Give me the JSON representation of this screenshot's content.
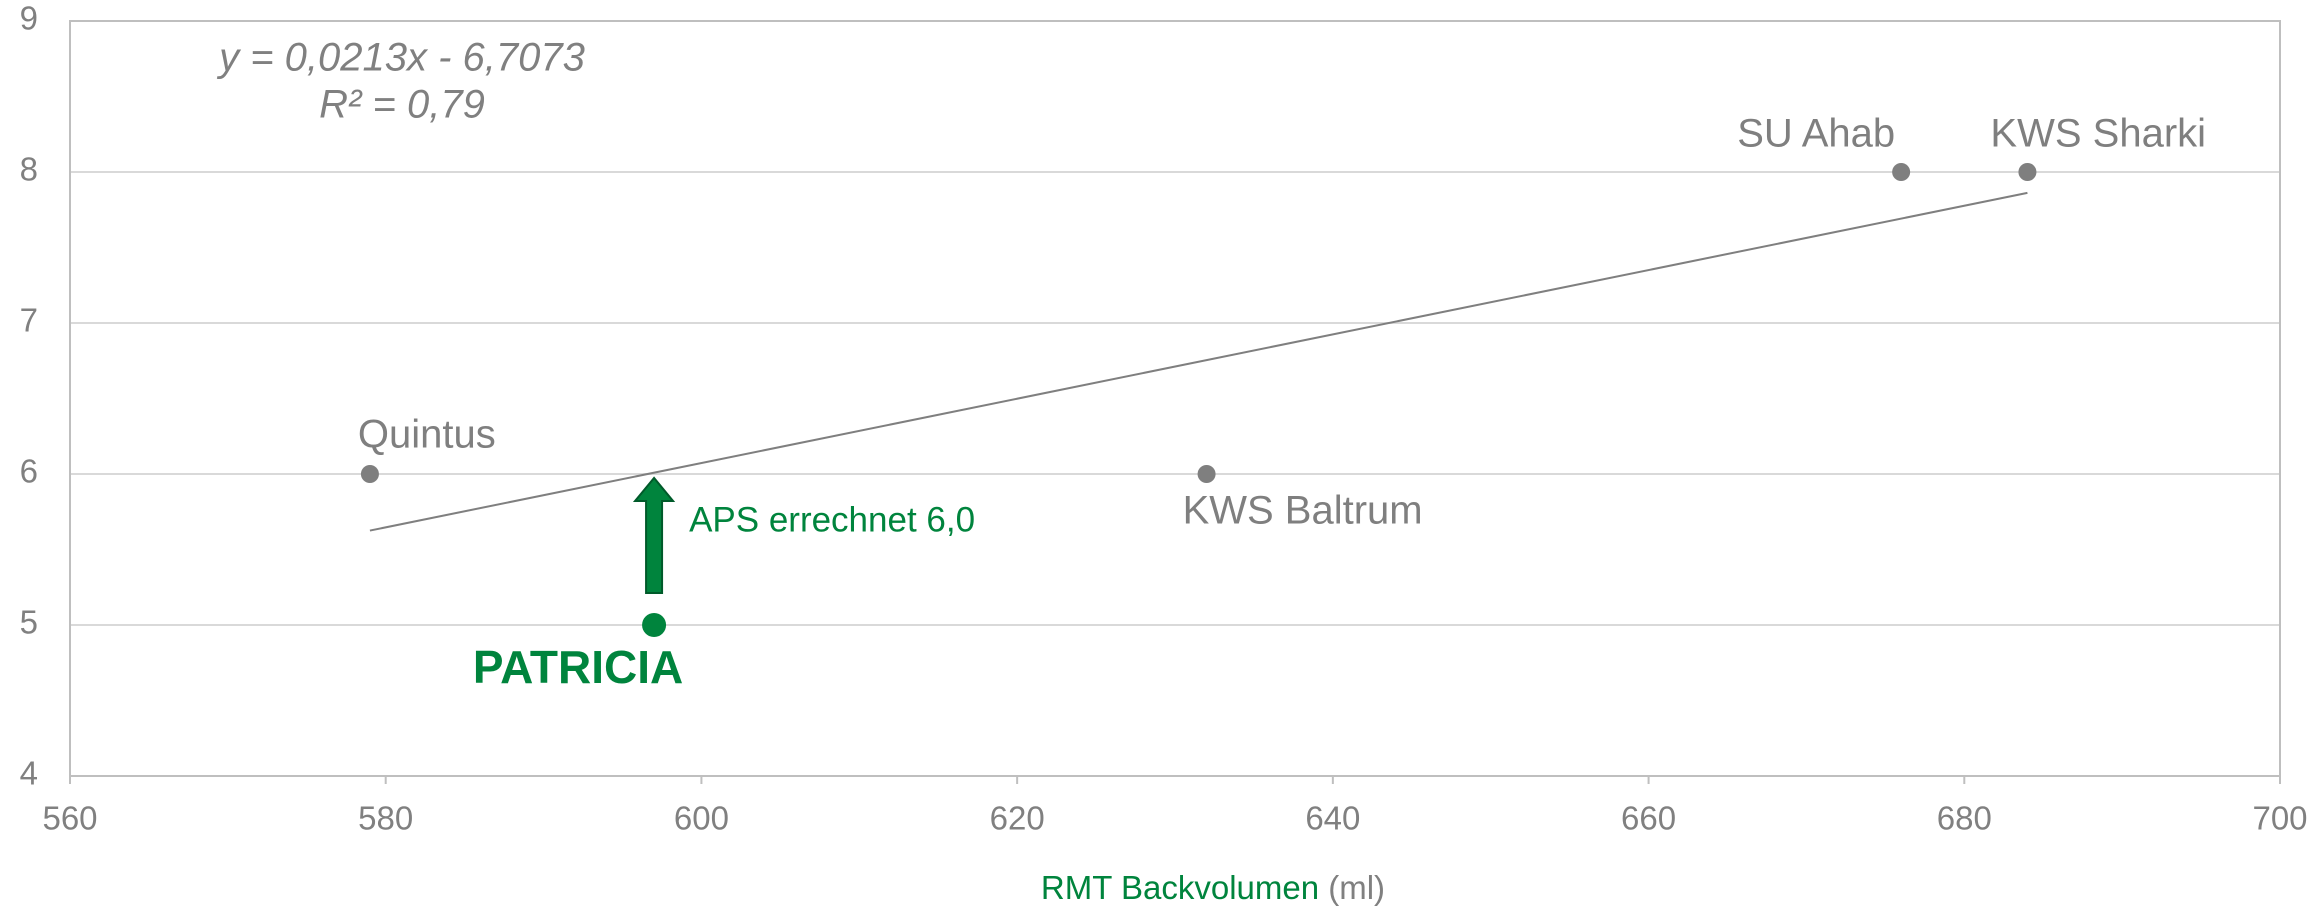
{
  "chart_data": {
    "type": "scatter",
    "xlabel": "RMT Backvolumen",
    "xlabel_unit": "(ml)",
    "xlim": [
      560,
      700
    ],
    "xticks": [
      560,
      580,
      600,
      620,
      640,
      660,
      680,
      700
    ],
    "ylim": [
      4,
      9
    ],
    "yticks": [
      4,
      5,
      6,
      7,
      8,
      9
    ],
    "grid": true,
    "points": [
      {
        "label": "Quintus",
        "x": 579,
        "y": 6,
        "color": "#7f7f7f"
      },
      {
        "label": "KWS Baltrum",
        "x": 632,
        "y": 6,
        "color": "#7f7f7f"
      },
      {
        "label": "SU Ahab",
        "x": 676,
        "y": 8,
        "color": "#7f7f7f"
      },
      {
        "label": "KWS Sharki",
        "x": 684,
        "y": 8,
        "color": "#7f7f7f"
      },
      {
        "label": "PATRICIA",
        "x": 597,
        "y": 5,
        "color": "#00843d"
      }
    ],
    "trendline": {
      "equation": "y = 0,0213x - 6,7073",
      "r2": "R² = 0,79",
      "slope": 0.0213,
      "intercept": -6.7073,
      "color": "#7f7f7f"
    },
    "annotation": {
      "text": "APS errechnet 6,0",
      "x": 597,
      "y": 6,
      "color": "#00843d"
    }
  }
}
